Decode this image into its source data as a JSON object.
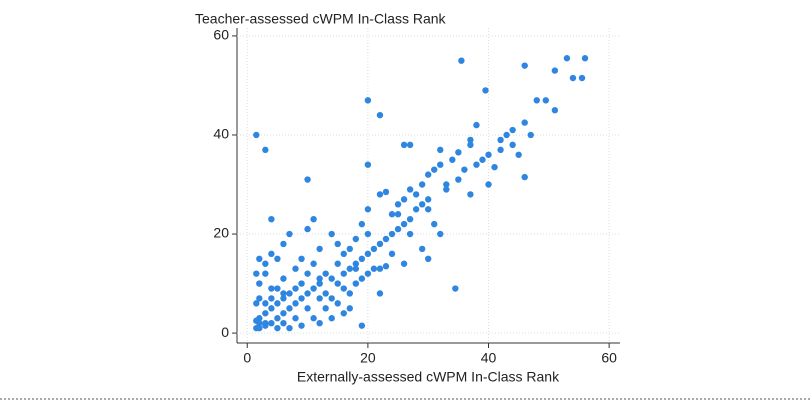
{
  "chart_data": {
    "type": "scatter",
    "title": "Teacher-assessed cWPM In-Class Rank",
    "x_label": "Externally-assessed cWPM In-Class Rank",
    "color": "#2f86e0",
    "grid": true,
    "xlim": [
      -1.7,
      61.8
    ],
    "ylim": [
      -2,
      61.6
    ],
    "xticks": [
      0,
      20,
      40,
      60
    ],
    "yticks": [
      0,
      20,
      40,
      60
    ],
    "x": [
      1.5,
      3,
      20,
      22,
      35.5,
      39.5,
      46,
      51,
      53,
      56,
      54,
      55.5,
      48,
      49.5,
      51,
      46,
      44,
      42,
      38,
      37,
      37,
      35,
      32,
      26,
      27,
      34,
      32,
      31,
      30,
      29,
      28,
      27,
      20,
      10,
      20,
      19,
      22,
      23,
      25,
      26,
      24,
      25,
      26,
      30,
      31,
      32,
      30,
      24,
      22,
      22,
      34.5,
      19,
      4,
      7,
      11,
      5,
      12,
      14,
      15,
      17,
      18,
      16,
      15,
      13,
      12,
      10,
      9,
      8,
      7,
      6,
      5,
      4,
      3,
      2,
      1.5,
      2,
      3,
      4,
      5,
      6,
      7,
      8,
      9,
      10,
      11,
      12,
      13,
      14,
      15,
      16,
      17,
      18,
      19,
      20,
      21,
      22,
      23,
      24,
      25,
      27,
      28,
      29,
      30,
      33,
      35,
      36,
      38,
      40,
      42,
      44,
      46,
      40,
      41,
      47,
      45,
      2,
      3,
      1.5,
      2,
      4,
      6,
      8,
      9,
      11,
      12,
      10,
      8,
      6,
      5,
      9,
      7,
      3,
      4,
      5,
      6,
      3,
      2,
      1.5,
      13,
      15,
      17,
      18,
      20,
      16,
      14,
      11,
      12,
      14,
      16,
      19,
      21,
      17,
      20,
      18,
      23,
      10,
      6,
      4,
      3,
      2,
      1.5,
      27,
      29,
      26,
      33,
      37,
      39,
      43
    ],
    "y": [
      40,
      37,
      47,
      44,
      55,
      49,
      54,
      53,
      55.5,
      55.5,
      51.5,
      51.5,
      47,
      47,
      45,
      42.5,
      41,
      39,
      42,
      39,
      38,
      36.5,
      37,
      38,
      38,
      35,
      34,
      33,
      32,
      30,
      28,
      29,
      34,
      31,
      25,
      22,
      28,
      28.5,
      26,
      27,
      24,
      24,
      22,
      25,
      22,
      20,
      15,
      16,
      13,
      8,
      9,
      1.5,
      23,
      20,
      23,
      15,
      17,
      20,
      18,
      17,
      19,
      16,
      14,
      12,
      11,
      12,
      10,
      9,
      8,
      7,
      6,
      5,
      4,
      3,
      1,
      2,
      1.5,
      2,
      3,
      4,
      5,
      6,
      7,
      8,
      9,
      10,
      8,
      11,
      10,
      12,
      13,
      14,
      15,
      16,
      17,
      18,
      19,
      20,
      21,
      23,
      25,
      26,
      27,
      29,
      31,
      33,
      34,
      36,
      37,
      38,
      31.5,
      30,
      33.5,
      40,
      36,
      10,
      12,
      6,
      7,
      9,
      11,
      13,
      15,
      14,
      7,
      5,
      3,
      2,
      1,
      1.5,
      1,
      6,
      7,
      9,
      8,
      2,
      1,
      2.5,
      5,
      6,
      8,
      10,
      12,
      4,
      3,
      3,
      2,
      7,
      9,
      11,
      13,
      5,
      20,
      13,
      13.5,
      21,
      18,
      16,
      14,
      15,
      12,
      20,
      17,
      14,
      30,
      28,
      35,
      40
    ]
  }
}
